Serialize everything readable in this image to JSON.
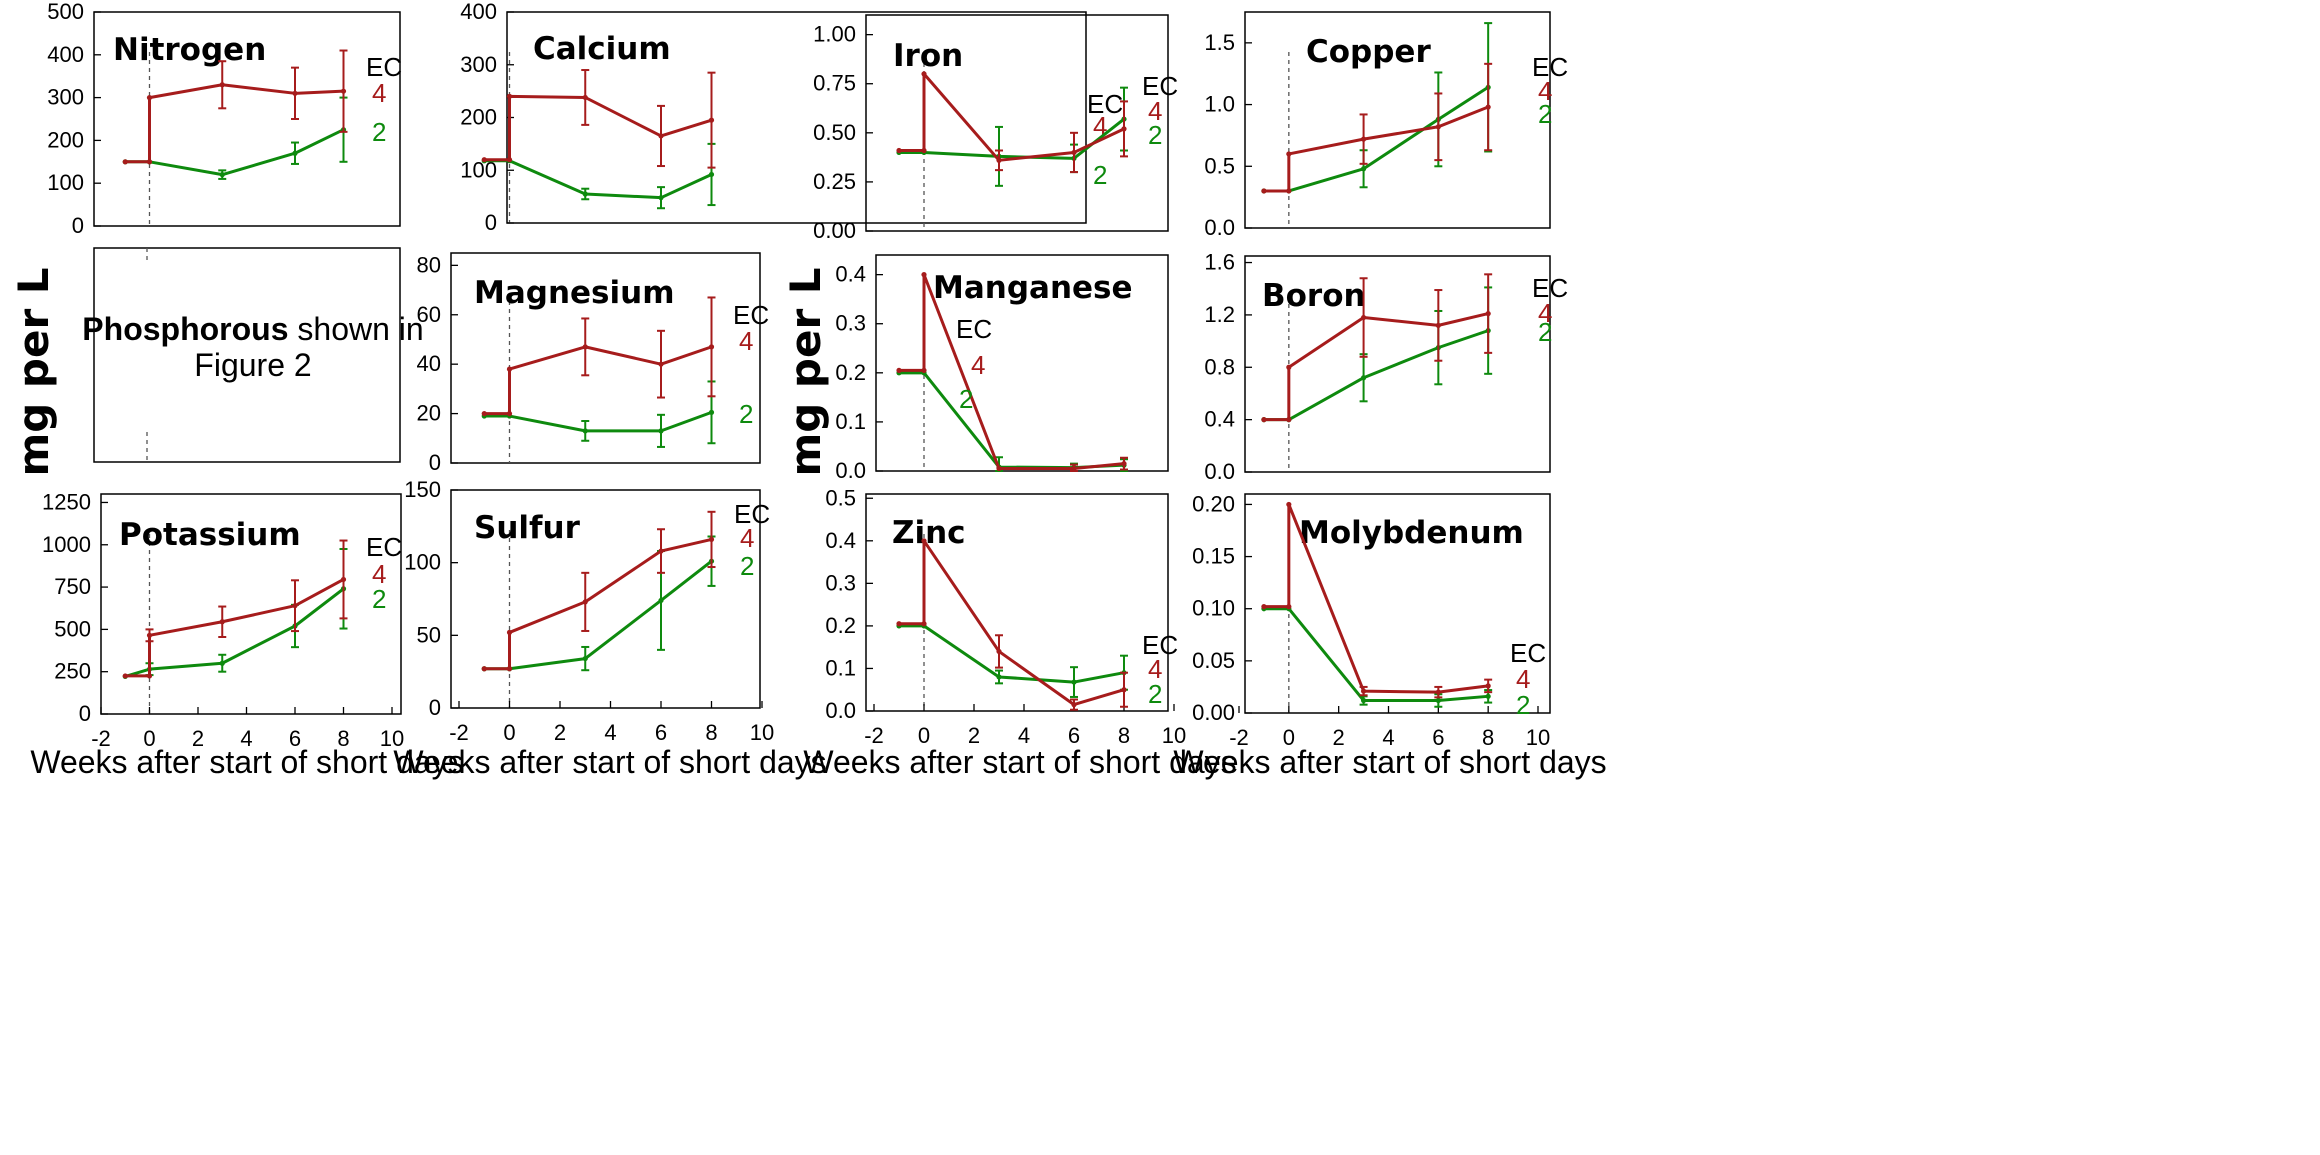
{
  "colors": {
    "ec4": "#a61c1c",
    "ec2": "#0e8a0e",
    "axis": "#000000",
    "zero_line": "#555555"
  },
  "figure": {
    "ylabel_left": "mg per L",
    "ylabel_right": "mg per L",
    "xlabels": [
      "Weeks after start  of short days",
      "Weeks after start  of short days",
      "Weeks after start  of short days",
      "Weeks after start  of short days"
    ],
    "legend_title": "EC",
    "ec_high": "4",
    "ec_low": "2",
    "note": {
      "bold": "Phosphorous",
      "rest": " shown in",
      "line2": "Figure 2"
    }
  },
  "chart_data": [
    {
      "type": "line",
      "id": "nitrogen",
      "title": "Nitrogen",
      "x": [
        -1,
        0,
        3,
        6,
        8
      ],
      "xlim": [
        -2,
        10
      ],
      "ylim": [
        0,
        500
      ],
      "yticks": [
        0,
        100,
        200,
        300,
        400,
        500
      ],
      "xticks": [],
      "series": [
        {
          "name": "EC 4",
          "x": [
            -1,
            0,
            0,
            3,
            6,
            8
          ],
          "values": [
            150,
            150,
            300,
            330,
            310,
            315
          ],
          "err": [
            0,
            0,
            0,
            55,
            60,
            95
          ]
        },
        {
          "name": "EC 2",
          "x": [
            -1,
            0,
            3,
            6,
            8
          ],
          "values": [
            150,
            150,
            120,
            170,
            225
          ],
          "err": [
            0,
            0,
            10,
            25,
            75
          ]
        }
      ]
    },
    {
      "type": "line",
      "id": "calcium",
      "title": "Calcium",
      "x": [
        -1,
        0,
        3,
        6,
        8
      ],
      "xlim": [
        -2,
        10
      ],
      "ylim": [
        0,
        400
      ],
      "yticks": [
        0,
        100,
        200,
        300,
        400
      ],
      "xticks": [],
      "series": [
        {
          "name": "EC 4",
          "x": [
            -1,
            0,
            0,
            3,
            6,
            8
          ],
          "values": [
            120,
            120,
            240,
            238,
            165,
            195
          ],
          "err": [
            0,
            0,
            0,
            52,
            57,
            90
          ]
        },
        {
          "name": "EC 2",
          "x": [
            -1,
            0,
            3,
            6,
            8
          ],
          "values": [
            118,
            118,
            55,
            48,
            92
          ],
          "err": [
            0,
            0,
            10,
            20,
            58
          ]
        }
      ]
    },
    {
      "type": "line",
      "id": "iron",
      "title": "Iron",
      "x": [
        -1,
        0,
        3,
        6,
        8
      ],
      "xlim": [
        -2,
        10
      ],
      "ylim": [
        0,
        1.1
      ],
      "yticks": [
        0,
        0.25,
        0.5,
        0.75,
        1.0
      ],
      "ytick_labels": [
        "0.00",
        "0.25",
        "0.50",
        "0.75",
        "1.00"
      ],
      "xticks": [],
      "series": [
        {
          "name": "EC 4",
          "x": [
            -1,
            0,
            0,
            3,
            6,
            8
          ],
          "values": [
            0.41,
            0.41,
            0.8,
            0.36,
            0.4,
            0.52
          ],
          "err": [
            0,
            0,
            0,
            0.05,
            0.1,
            0.14
          ]
        },
        {
          "name": "EC 2",
          "x": [
            -1,
            0,
            3,
            6,
            8
          ],
          "values": [
            0.4,
            0.4,
            0.38,
            0.37,
            0.57
          ],
          "err": [
            0,
            0,
            0.15,
            0.07,
            0.16
          ]
        }
      ]
    },
    {
      "type": "line",
      "id": "copper",
      "title": "Copper",
      "x": [
        -1,
        0,
        3,
        6,
        8
      ],
      "xlim": [
        -2,
        10
      ],
      "ylim": [
        0,
        1.75
      ],
      "yticks": [
        0,
        0.5,
        1.0,
        1.5
      ],
      "ytick_labels": [
        "0.0",
        "0.5",
        "1.0",
        "1.5"
      ],
      "xticks": [],
      "series": [
        {
          "name": "EC 4",
          "x": [
            -1,
            0,
            0,
            3,
            6,
            8
          ],
          "values": [
            0.3,
            0.3,
            0.6,
            0.72,
            0.82,
            0.98
          ],
          "err": [
            0,
            0,
            0,
            0.2,
            0.27,
            0.35
          ]
        },
        {
          "name": "EC 2",
          "x": [
            -1,
            0,
            3,
            6,
            8
          ],
          "values": [
            0.3,
            0.3,
            0.48,
            0.88,
            1.14
          ],
          "err": [
            0,
            0,
            0.15,
            0.38,
            0.52
          ]
        }
      ]
    },
    {
      "type": "line",
      "id": "magnesium",
      "title": "Magnesium",
      "x": [
        -1,
        0,
        3,
        6,
        8
      ],
      "xlim": [
        -2,
        10
      ],
      "ylim": [
        0,
        85
      ],
      "yticks": [
        0,
        20,
        40,
        60,
        80
      ],
      "xticks": [],
      "series": [
        {
          "name": "EC 4",
          "x": [
            -1,
            0,
            0,
            3,
            6,
            8
          ],
          "values": [
            20,
            20,
            38,
            47,
            40,
            47
          ],
          "err": [
            0,
            0,
            0,
            11.5,
            13.5,
            20
          ]
        },
        {
          "name": "EC 2",
          "x": [
            -1,
            0,
            3,
            6,
            8
          ],
          "values": [
            19,
            19,
            13,
            13,
            20.5
          ],
          "err": [
            0,
            0,
            4,
            6.5,
            12.5
          ]
        }
      ]
    },
    {
      "type": "line",
      "id": "manganese",
      "title": "Manganese",
      "x": [
        -1,
        0,
        3,
        6,
        8
      ],
      "xlim": [
        -2,
        10
      ],
      "ylim": [
        0,
        0.44
      ],
      "yticks": [
        0,
        0.1,
        0.2,
        0.3,
        0.4
      ],
      "ytick_labels": [
        "0.0",
        "0.1",
        "0.2",
        "0.3",
        "0.4"
      ],
      "xticks": [],
      "series": [
        {
          "name": "EC 4",
          "x": [
            -1,
            0,
            0,
            3,
            6,
            8
          ],
          "values": [
            0.205,
            0.205,
            0.4,
            0.005,
            0.005,
            0.015
          ],
          "err": [
            0,
            0,
            0,
            0,
            0.008,
            0.012
          ]
        },
        {
          "name": "EC 2",
          "x": [
            -1,
            0,
            3,
            6,
            8
          ],
          "values": [
            0.2,
            0.2,
            0.008,
            0.007,
            0.012
          ],
          "err": [
            0,
            0,
            0.02,
            0.008,
            0.012
          ]
        }
      ]
    },
    {
      "type": "line",
      "id": "boron",
      "title": "Boron",
      "x": [
        -1,
        0,
        3,
        6,
        8
      ],
      "xlim": [
        -2,
        10
      ],
      "ylim": [
        0,
        1.65
      ],
      "yticks": [
        0,
        0.4,
        0.8,
        1.2,
        1.6
      ],
      "ytick_labels": [
        "0.0",
        "0.4",
        "0.8",
        "1.2",
        "1.6"
      ],
      "xticks": [],
      "series": [
        {
          "name": "EC 4",
          "x": [
            -1,
            0,
            0,
            3,
            6,
            8
          ],
          "values": [
            0.4,
            0.4,
            0.8,
            1.18,
            1.12,
            1.21
          ],
          "err": [
            0,
            0,
            0,
            0.3,
            0.27,
            0.3
          ]
        },
        {
          "name": "EC 2",
          "x": [
            -1,
            0,
            3,
            6,
            8
          ],
          "values": [
            0.4,
            0.4,
            0.72,
            0.95,
            1.08
          ],
          "err": [
            0,
            0,
            0.18,
            0.28,
            0.33
          ]
        }
      ]
    },
    {
      "type": "line",
      "id": "potassium",
      "title": "Potassium",
      "x": [
        -1,
        0,
        3,
        6,
        8
      ],
      "xlim": [
        -2,
        10
      ],
      "ylim": [
        0,
        1300
      ],
      "yticks": [
        0,
        250,
        500,
        750,
        1000,
        1250
      ],
      "xticks": [
        -2,
        0,
        2,
        4,
        6,
        8,
        10
      ],
      "series": [
        {
          "name": "EC 4",
          "x": [
            -1,
            0,
            0,
            3,
            6,
            8
          ],
          "values": [
            225,
            225,
            465,
            545,
            640,
            795
          ],
          "err": [
            0,
            0,
            35,
            90,
            150,
            230
          ]
        },
        {
          "name": "EC 2",
          "x": [
            -1,
            0,
            3,
            6,
            8
          ],
          "values": [
            222,
            265,
            300,
            520,
            740
          ],
          "err": [
            0,
            35,
            50,
            125,
            235
          ]
        }
      ]
    },
    {
      "type": "line",
      "id": "sulfur",
      "title": "Sulfur",
      "x": [
        -1,
        0,
        3,
        6,
        8
      ],
      "xlim": [
        -2,
        10
      ],
      "ylim": [
        0,
        150
      ],
      "yticks": [
        0,
        50,
        100,
        150
      ],
      "xticks": [
        -2,
        0,
        2,
        4,
        6,
        8,
        10
      ],
      "series": [
        {
          "name": "EC 4",
          "x": [
            -1,
            0,
            0,
            3,
            6,
            8
          ],
          "values": [
            27,
            27,
            52,
            73,
            108,
            116
          ],
          "err": [
            0,
            0,
            0,
            20,
            15,
            19
          ]
        },
        {
          "name": "EC 2",
          "x": [
            -1,
            0,
            3,
            6,
            8
          ],
          "values": [
            27,
            27,
            34,
            74,
            101
          ],
          "err": [
            0,
            0,
            8,
            34,
            17
          ]
        }
      ]
    },
    {
      "type": "line",
      "id": "zinc",
      "title": "Zinc",
      "x": [
        -1,
        0,
        3,
        6,
        8
      ],
      "xlim": [
        -2,
        10
      ],
      "ylim": [
        0,
        0.51
      ],
      "yticks": [
        0,
        0.1,
        0.2,
        0.3,
        0.4,
        0.5
      ],
      "ytick_labels": [
        "0.0",
        "0.1",
        "0.2",
        "0.3",
        "0.4",
        "0.5"
      ],
      "xticks": [
        -2,
        0,
        2,
        4,
        6,
        8,
        10
      ],
      "series": [
        {
          "name": "EC 4",
          "x": [
            -1,
            0,
            0,
            3,
            6,
            8
          ],
          "values": [
            0.205,
            0.205,
            0.4,
            0.14,
            0.015,
            0.05
          ],
          "err": [
            0,
            0,
            0,
            0.038,
            0.012,
            0.04
          ]
        },
        {
          "name": "EC 2",
          "x": [
            -1,
            0,
            3,
            6,
            8
          ],
          "values": [
            0.2,
            0.2,
            0.08,
            0.068,
            0.09
          ],
          "err": [
            0,
            0,
            0.015,
            0.035,
            0.04
          ]
        }
      ]
    },
    {
      "type": "line",
      "id": "molybdenum",
      "title": "Molybdenum",
      "x": [
        -1,
        0,
        3,
        6,
        8
      ],
      "xlim": [
        -2,
        10
      ],
      "ylim": [
        0,
        0.21
      ],
      "yticks": [
        0,
        0.05,
        0.1,
        0.15,
        0.2
      ],
      "ytick_labels": [
        "0.00",
        "0.05",
        "0.10",
        "0.15",
        "0.20"
      ],
      "xticks": [
        -2,
        0,
        2,
        4,
        6,
        8,
        10
      ],
      "series": [
        {
          "name": "EC 4",
          "x": [
            -1,
            0,
            0,
            3,
            6,
            8
          ],
          "values": [
            0.102,
            0.102,
            0.2,
            0.021,
            0.02,
            0.026
          ],
          "err": [
            0,
            0,
            0,
            0.004,
            0.005,
            0.006
          ]
        },
        {
          "name": "EC 2",
          "x": [
            -1,
            0,
            3,
            6,
            8
          ],
          "values": [
            0.1,
            0.1,
            0.012,
            0.012,
            0.016
          ],
          "err": [
            0,
            0,
            0.004,
            0.006,
            0.006
          ]
        }
      ]
    }
  ]
}
